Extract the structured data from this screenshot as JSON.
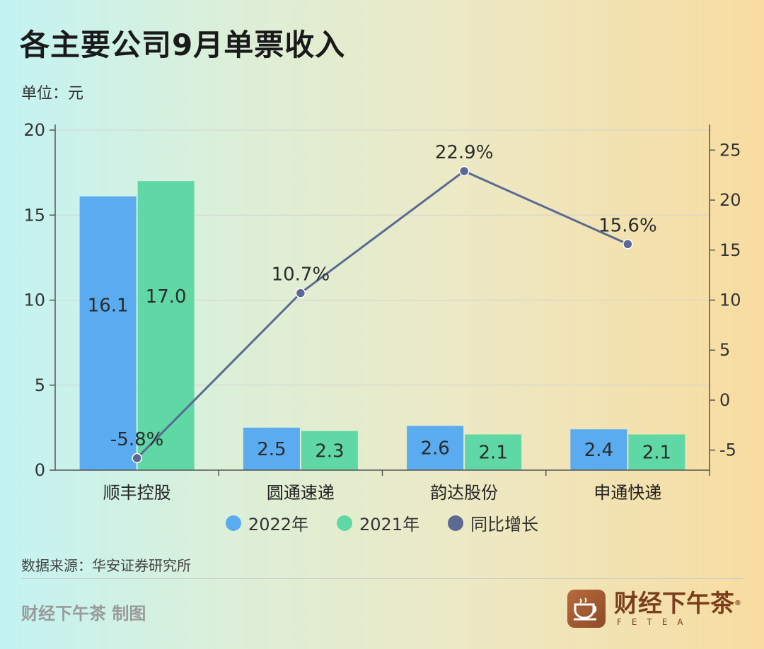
{
  "title": "各主要公司9月单票收入",
  "unit_label": "单位：元",
  "source": "数据来源：华安证券研究所",
  "credit": "财经下午茶 制图",
  "brand": {
    "name": "财经下午茶",
    "sub": "FETEA",
    "reg": "®"
  },
  "legend": {
    "s1": "2022年",
    "s2": "2021年",
    "s3": "同比增长"
  },
  "colors": {
    "s1": "#5aabf0",
    "s2": "#5fd8a6",
    "line": "#5a6a92",
    "axis": "#555555",
    "grid": "#d2d2d2"
  },
  "chart_data": {
    "type": "bar",
    "categories": [
      "顺丰控股",
      "圆通速递",
      "韵达股份",
      "申通快递"
    ],
    "series": [
      {
        "name": "2022年",
        "type": "bar",
        "axis": "left",
        "values": [
          16.1,
          2.5,
          2.6,
          2.4
        ],
        "labels": [
          "16.1",
          "2.5",
          "2.6",
          "2.4"
        ]
      },
      {
        "name": "2021年",
        "type": "bar",
        "axis": "left",
        "values": [
          17.0,
          2.3,
          2.1,
          2.1
        ],
        "labels": [
          "17.0",
          "2.3",
          "2.1",
          "2.1"
        ]
      },
      {
        "name": "同比增长",
        "type": "line",
        "axis": "right",
        "values": [
          -5.8,
          10.7,
          22.9,
          15.6
        ],
        "labels": [
          "-5.8%",
          "10.7%",
          "22.9%",
          "15.6%"
        ]
      }
    ],
    "y_left": {
      "ticks": [
        "0",
        "5",
        "10",
        "15",
        "20"
      ],
      "range": [
        0,
        20
      ]
    },
    "y_right": {
      "ticks": [
        "-5",
        "0",
        "5",
        "10",
        "15",
        "20",
        "25"
      ],
      "range": [
        -7,
        27
      ]
    },
    "grid": true,
    "legend_position": "bottom"
  }
}
